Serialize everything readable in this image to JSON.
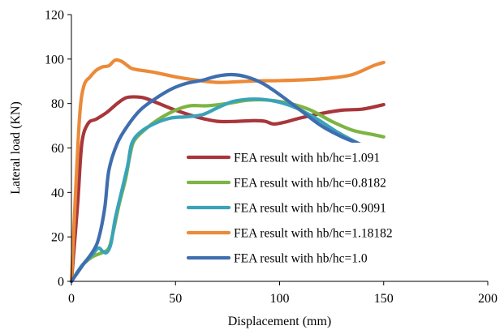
{
  "chart_data": {
    "type": "line",
    "title": "",
    "xlabel": "Displacement (mm)",
    "ylabel": "Lateral load (KN)",
    "xlim": [
      0,
      200
    ],
    "ylim": [
      0,
      120
    ],
    "x_ticks": [
      0,
      50,
      100,
      150,
      200
    ],
    "y_ticks": [
      0,
      20,
      40,
      60,
      80,
      100,
      120
    ],
    "grid": false,
    "legend_position": "center-right",
    "series": [
      {
        "name": "FEA result with hb/hc=1.091",
        "color": "#A8363A",
        "points": [
          [
            0,
            0
          ],
          [
            3,
            35
          ],
          [
            5,
            62
          ],
          [
            8,
            71
          ],
          [
            12,
            73
          ],
          [
            17,
            76
          ],
          [
            22,
            80
          ],
          [
            26,
            82.5
          ],
          [
            30,
            83
          ],
          [
            35,
            82.5
          ],
          [
            42,
            80
          ],
          [
            50,
            77
          ],
          [
            60,
            74
          ],
          [
            70,
            72
          ],
          [
            80,
            72
          ],
          [
            88,
            72.3
          ],
          [
            93,
            72
          ],
          [
            97,
            70.8
          ],
          [
            102,
            71.5
          ],
          [
            110,
            73.5
          ],
          [
            120,
            75.5
          ],
          [
            130,
            77
          ],
          [
            140,
            77.5
          ],
          [
            150,
            79.5
          ]
        ]
      },
      {
        "name": "FEA result with hb/hc=0.8182",
        "color": "#7DB442",
        "points": [
          [
            0,
            0
          ],
          [
            5,
            7
          ],
          [
            10,
            11
          ],
          [
            15,
            13
          ],
          [
            18,
            15
          ],
          [
            20,
            22
          ],
          [
            23,
            35
          ],
          [
            26,
            46
          ],
          [
            28,
            56
          ],
          [
            30,
            63
          ],
          [
            35,
            68
          ],
          [
            42,
            73
          ],
          [
            50,
            77
          ],
          [
            57,
            79
          ],
          [
            65,
            79
          ],
          [
            75,
            80
          ],
          [
            85,
            81.5
          ],
          [
            95,
            81.5
          ],
          [
            105,
            80
          ],
          [
            115,
            77
          ],
          [
            125,
            72
          ],
          [
            135,
            68
          ],
          [
            145,
            66
          ],
          [
            150,
            65
          ]
        ]
      },
      {
        "name": "FEA result with hb/hc=0.9091",
        "color": "#3AA3BA",
        "points": [
          [
            0,
            0
          ],
          [
            5,
            7
          ],
          [
            10,
            12
          ],
          [
            13,
            15
          ],
          [
            15,
            13.5
          ],
          [
            17,
            13
          ],
          [
            19,
            17
          ],
          [
            21,
            28
          ],
          [
            24,
            40
          ],
          [
            27,
            52
          ],
          [
            29,
            62
          ],
          [
            33,
            67
          ],
          [
            40,
            71
          ],
          [
            48,
            73.5
          ],
          [
            55,
            74
          ],
          [
            63,
            75
          ],
          [
            70,
            78
          ],
          [
            78,
            81
          ],
          [
            88,
            82
          ],
          [
            98,
            81
          ],
          [
            108,
            78
          ],
          [
            118,
            73
          ],
          [
            128,
            67
          ],
          [
            138,
            62
          ],
          [
            143,
            60
          ]
        ]
      },
      {
        "name": "FEA result with hb/hc=1.18182",
        "color": "#EB8A38",
        "points": [
          [
            0,
            0
          ],
          [
            2,
            40
          ],
          [
            4,
            75
          ],
          [
            6,
            88
          ],
          [
            9,
            92
          ],
          [
            12,
            95
          ],
          [
            15,
            96.5
          ],
          [
            18,
            97
          ],
          [
            21,
            99.5
          ],
          [
            24,
            99
          ],
          [
            27,
            97
          ],
          [
            30,
            95.5
          ],
          [
            40,
            94
          ],
          [
            50,
            92
          ],
          [
            60,
            90.5
          ],
          [
            70,
            89.5
          ],
          [
            80,
            89.8
          ],
          [
            90,
            90.2
          ],
          [
            100,
            90.3
          ],
          [
            115,
            90.8
          ],
          [
            125,
            91.5
          ],
          [
            135,
            93
          ],
          [
            145,
            97
          ],
          [
            150,
            98.5
          ]
        ]
      },
      {
        "name": "FEA result with hb/hc=1.0",
        "color": "#3F6EAF",
        "points": [
          [
            0,
            0
          ],
          [
            3,
            4
          ],
          [
            6,
            8
          ],
          [
            10,
            13
          ],
          [
            13,
            19
          ],
          [
            16,
            33
          ],
          [
            18,
            50
          ],
          [
            22,
            62
          ],
          [
            27,
            70
          ],
          [
            33,
            77
          ],
          [
            40,
            82
          ],
          [
            48,
            86.5
          ],
          [
            55,
            89
          ],
          [
            63,
            90.5
          ],
          [
            70,
            92.3
          ],
          [
            77,
            93
          ],
          [
            84,
            92
          ],
          [
            92,
            89
          ],
          [
            100,
            84
          ],
          [
            110,
            77
          ],
          [
            120,
            70
          ],
          [
            130,
            65
          ],
          [
            138,
            62
          ],
          [
            143,
            60
          ]
        ]
      }
    ]
  }
}
